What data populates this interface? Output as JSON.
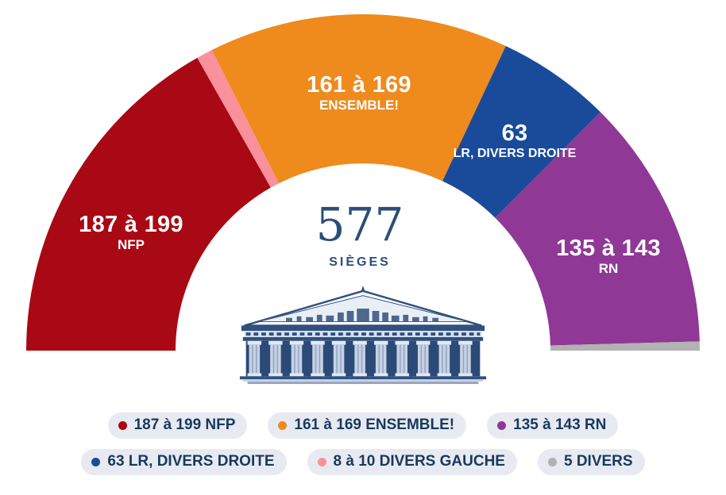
{
  "chart_data": {
    "type": "pie",
    "variant": "half-donut-hemicycle",
    "title": "",
    "arc_degrees": 180,
    "legend_position": "bottom",
    "total_seats": 577,
    "center_label": {
      "number": "577",
      "unit": "SIÈGES"
    },
    "series": [
      {
        "name": "NFP",
        "seats_label": "187 à 199",
        "seats_min": 187,
        "seats_max": 199,
        "value": 193,
        "color": "#A90914"
      },
      {
        "name": "DIVERS GAUCHE",
        "seats_label": "8 à 10",
        "seats_min": 8,
        "seats_max": 10,
        "value": 9,
        "color": "#F9909B"
      },
      {
        "name": "ENSEMBLE!",
        "seats_label": "161 à 169",
        "seats_min": 161,
        "seats_max": 169,
        "value": 165,
        "color": "#EF8A1D"
      },
      {
        "name": "LR, DIVERS DROITE",
        "seats_label": "63",
        "seats_min": 63,
        "seats_max": 63,
        "value": 63,
        "color": "#1A4B9B"
      },
      {
        "name": "RN",
        "seats_label": "135 à 143",
        "seats_min": 135,
        "seats_max": 143,
        "value": 139,
        "color": "#8F3896"
      },
      {
        "name": "DIVERS",
        "seats_label": "5",
        "seats_min": 5,
        "seats_max": 5,
        "value": 5,
        "color": "#B2B2B2"
      }
    ]
  },
  "legend": {
    "row1": [
      {
        "label": "187 à 199 NFP",
        "color": "#A90914"
      },
      {
        "label": "161 à 169 ENSEMBLE!",
        "color": "#EF8A1D"
      },
      {
        "label": "135 à 143 RN",
        "color": "#8F3896"
      }
    ],
    "row2": [
      {
        "label": "63 LR, DIVERS DROITE",
        "color": "#1A4B9B"
      },
      {
        "label": "8 à 10 DIVERS GAUCHE",
        "color": "#F9909B"
      },
      {
        "label": "5 DIVERS",
        "color": "#B2B2B2"
      }
    ]
  }
}
